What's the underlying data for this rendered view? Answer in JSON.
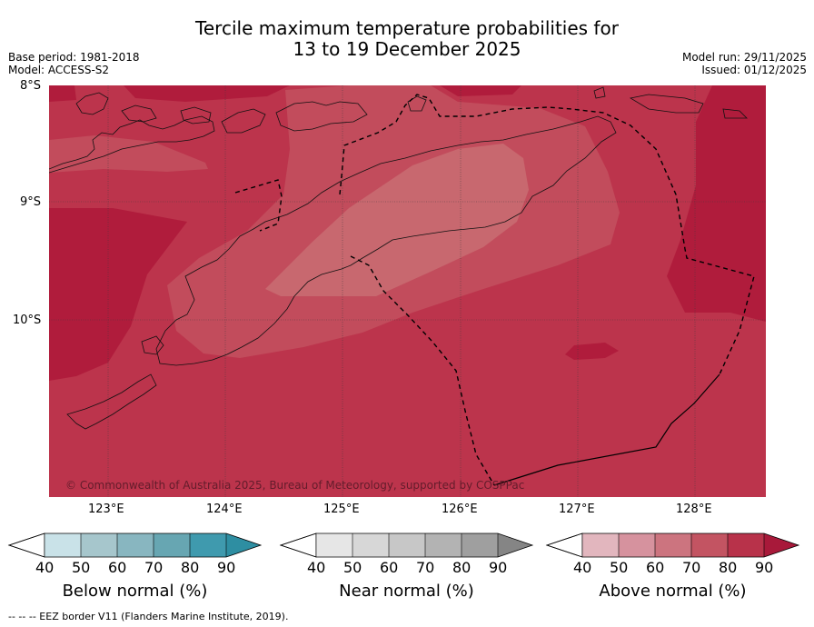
{
  "header": {
    "title_line1": "Tercile maximum temperature probabilities for",
    "title_line2": "13 to 19 December 2025",
    "base_period": "Base period: 1981-2018",
    "model": "Model: ACCESS-S2",
    "model_run": "Model run: 29/11/2025",
    "issued": "Issued: 01/12/2025"
  },
  "map": {
    "lat_labels": [
      "8°S",
      "9°S",
      "10°S"
    ],
    "lon_labels": [
      "123°E",
      "124°E",
      "125°E",
      "126°E",
      "127°E",
      "128°E"
    ],
    "copyright": "© Commonwealth of Australia 2025, Bureau of Meteorology, supported by COSPPac",
    "colors": {
      "above_90": "#B01C3C",
      "above_80": "#BC344C",
      "above_70": "#C24C5C",
      "above_60": "#C8686F"
    }
  },
  "legends": [
    {
      "title": "Below normal (%)",
      "ticks": [
        "40",
        "50",
        "60",
        "70",
        "80",
        "90"
      ],
      "colors": [
        "#C9E2E8",
        "#A6C6CC",
        "#88B6C0",
        "#67A6B2",
        "#3F9AAE",
        "#2E8EA2"
      ]
    },
    {
      "title": "Near normal (%)",
      "ticks": [
        "40",
        "50",
        "60",
        "70",
        "80",
        "90"
      ],
      "colors": [
        "#E6E6E6",
        "#D7D7D7",
        "#C7C7C7",
        "#B3B3B3",
        "#9F9F9F",
        "#858585"
      ]
    },
    {
      "title": "Above normal (%)",
      "ticks": [
        "40",
        "50",
        "60",
        "70",
        "80",
        "90"
      ],
      "colors": [
        "#E2B6BE",
        "#D6929E",
        "#CC747F",
        "#C35462",
        "#B8324A",
        "#A8193A"
      ]
    }
  ],
  "footer": {
    "eez_note": "--  --  -- EEZ border V11 (Flanders Marine Institute, 2019)."
  }
}
